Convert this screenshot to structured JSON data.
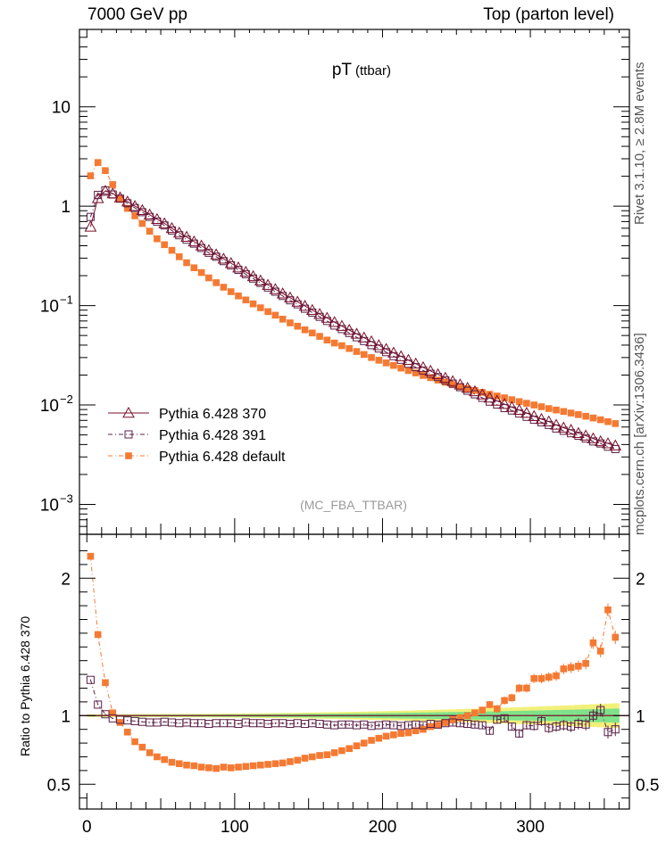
{
  "header": {
    "left": "7000 GeV pp",
    "right": "Top (parton level)",
    "side_top": "Rivet 3.1.10, ≥ 2.8M events",
    "side_bottom": "mcplots.cern.ch [arXiv:1306.3436]"
  },
  "chart_data": {
    "type": "scatter",
    "title": "pT",
    "title_sub": "(ttbar)",
    "annotation": "(MC_FBA_TTBAR)",
    "ratio_ylabel": "Ratio to Pythia 6.428 370",
    "xlim": [
      -5,
      367
    ],
    "ylim_log": [
      0.0005,
      60
    ],
    "ylim_ratio": [
      0.32,
      2.32
    ],
    "main_yticks": [
      "10",
      "1",
      "10^-1",
      "10^-2",
      "10^-3"
    ],
    "ratio_yticks": [
      "2",
      "1",
      "0.5"
    ],
    "xticks": [
      "0",
      "100",
      "200",
      "300"
    ],
    "legend_position": "lower-left",
    "colors": {
      "s370": "#7a1029",
      "s391": "#5a2048",
      "default": "#f47a33",
      "band_yellow": "#f2f07a",
      "band_green": "#7ee28a"
    },
    "series": [
      {
        "name": "Pythia 6.428 370",
        "marker": "open-triangle"
      },
      {
        "name": "Pythia 6.428 391",
        "marker": "open-square"
      },
      {
        "name": "Pythia 6.428 default",
        "marker": "filled-square"
      }
    ],
    "x": [
      2.5,
      7.5,
      12.5,
      17.5,
      22.5,
      27.5,
      32.5,
      37.5,
      42.5,
      47.5,
      52.5,
      57.5,
      62.5,
      67.5,
      72.5,
      77.5,
      82.5,
      87.5,
      92.5,
      97.5,
      102.5,
      107.5,
      112.5,
      117.5,
      122.5,
      127.5,
      132.5,
      137.5,
      142.5,
      147.5,
      152.5,
      157.5,
      162.5,
      167.5,
      172.5,
      177.5,
      182.5,
      187.5,
      192.5,
      197.5,
      202.5,
      207.5,
      212.5,
      217.5,
      222.5,
      227.5,
      232.5,
      237.5,
      242.5,
      247.5,
      252.5,
      257.5,
      262.5,
      267.5,
      272.5,
      277.5,
      282.5,
      287.5,
      292.5,
      297.5,
      302.5,
      307.5,
      312.5,
      317.5,
      322.5,
      327.5,
      332.5,
      337.5,
      342.5,
      347.5,
      352.5,
      357.5
    ],
    "s370": [
      0.62,
      1.2,
      1.42,
      1.34,
      1.22,
      1.11,
      1.0,
      0.91,
      0.82,
      0.74,
      0.67,
      0.6,
      0.54,
      0.49,
      0.44,
      0.4,
      0.36,
      0.326,
      0.295,
      0.267,
      0.241,
      0.218,
      0.197,
      0.178,
      0.161,
      0.146,
      0.132,
      0.12,
      0.109,
      0.099,
      0.09,
      0.082,
      0.075,
      0.068,
      0.0622,
      0.0568,
      0.0519,
      0.0475,
      0.0435,
      0.0398,
      0.0365,
      0.0335,
      0.0308,
      0.0283,
      0.026,
      0.0239,
      0.022,
      0.0203,
      0.0187,
      0.0173,
      0.016,
      0.0148,
      0.0137,
      0.0127,
      0.0118,
      0.011,
      0.0102,
      0.0095,
      0.0089,
      0.0083,
      0.0077,
      0.0072,
      0.0068,
      0.0063,
      0.0059,
      0.0056,
      0.0052,
      0.0049,
      0.0046,
      0.0043,
      0.0041,
      0.0039
    ],
    "s391": [
      0.78,
      1.3,
      1.44,
      1.31,
      1.19,
      1.07,
      0.96,
      0.87,
      0.78,
      0.7,
      0.64,
      0.57,
      0.51,
      0.46,
      0.42,
      0.38,
      0.34,
      0.31,
      0.28,
      0.254,
      0.229,
      0.207,
      0.187,
      0.169,
      0.152,
      0.138,
      0.125,
      0.113,
      0.103,
      0.093,
      0.085,
      0.077,
      0.07,
      0.063,
      0.058,
      0.053,
      0.048,
      0.044,
      0.04,
      0.037,
      0.034,
      0.031,
      0.0285,
      0.026,
      0.024,
      0.0222,
      0.0206,
      0.0191,
      0.0177,
      0.0164,
      0.0151,
      0.0139,
      0.0128,
      0.0118,
      0.0108,
      0.0101,
      0.0093,
      0.0088,
      0.0082,
      0.0076,
      0.0071,
      0.0067,
      0.0063,
      0.0058,
      0.0055,
      0.0052,
      0.0049,
      0.0046,
      0.0043,
      0.0041,
      0.0038,
      0.0036
    ],
    "default": [
      2.02,
      2.75,
      2.28,
      1.65,
      1.2,
      0.95,
      0.8,
      0.67,
      0.56,
      0.47,
      0.41,
      0.36,
      0.31,
      0.27,
      0.24,
      0.215,
      0.19,
      0.17,
      0.153,
      0.138,
      0.125,
      0.114,
      0.104,
      0.095,
      0.087,
      0.08,
      0.073,
      0.067,
      0.062,
      0.057,
      0.053,
      0.049,
      0.045,
      0.042,
      0.0395,
      0.037,
      0.0345,
      0.0322,
      0.03,
      0.0282,
      0.0265,
      0.025,
      0.0235,
      0.0222,
      0.021,
      0.0198,
      0.0188,
      0.0178,
      0.0169,
      0.016,
      0.0153,
      0.0146,
      0.014,
      0.0134,
      0.0128,
      0.0123,
      0.0118,
      0.0113,
      0.0108,
      0.0104,
      0.01,
      0.0096,
      0.0092,
      0.0089,
      0.0086,
      0.0083,
      0.008,
      0.0077,
      0.0074,
      0.0071,
      0.0068,
      0.0065
    ],
    "ratio_391": [
      1.26,
      1.08,
      1.01,
      0.98,
      0.97,
      0.965,
      0.96,
      0.955,
      0.95,
      0.95,
      0.955,
      0.95,
      0.945,
      0.95,
      0.945,
      0.945,
      0.94,
      0.945,
      0.945,
      0.945,
      0.94,
      0.95,
      0.945,
      0.945,
      0.94,
      0.945,
      0.945,
      0.94,
      0.945,
      0.94,
      0.945,
      0.94,
      0.935,
      0.93,
      0.935,
      0.935,
      0.93,
      0.935,
      0.925,
      0.93,
      0.935,
      0.93,
      0.925,
      0.93,
      0.935,
      0.93,
      0.94,
      0.935,
      0.945,
      0.95,
      0.945,
      0.94,
      0.935,
      0.93,
      0.89,
      0.97,
      0.98,
      0.92,
      0.87,
      0.93,
      0.925,
      0.96,
      0.91,
      0.92,
      0.93,
      0.92,
      0.94,
      0.935,
      1.0,
      1.04,
      0.88,
      0.9
    ],
    "ratio_default": [
      2.16,
      1.59,
      1.24,
      1.02,
      0.95,
      0.88,
      0.81,
      0.77,
      0.73,
      0.7,
      0.68,
      0.66,
      0.65,
      0.64,
      0.635,
      0.625,
      0.62,
      0.615,
      0.625,
      0.62,
      0.625,
      0.63,
      0.635,
      0.64,
      0.645,
      0.65,
      0.655,
      0.665,
      0.675,
      0.69,
      0.7,
      0.71,
      0.715,
      0.73,
      0.745,
      0.76,
      0.78,
      0.8,
      0.82,
      0.835,
      0.85,
      0.86,
      0.87,
      0.875,
      0.89,
      0.9,
      0.92,
      0.93,
      0.95,
      0.97,
      0.985,
      1.0,
      1.02,
      1.04,
      1.08,
      1.05,
      1.11,
      1.13,
      1.2,
      1.2,
      1.27,
      1.27,
      1.28,
      1.29,
      1.34,
      1.35,
      1.36,
      1.38,
      1.53,
      1.47,
      1.77,
      1.57
    ]
  }
}
